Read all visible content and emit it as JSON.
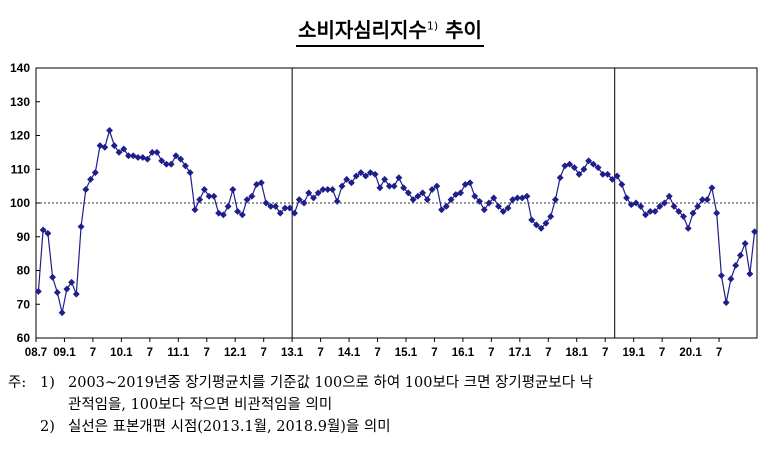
{
  "title": {
    "main": "소비자심리지수",
    "sup": "1)",
    "suffix": "추이"
  },
  "notes": {
    "prefix": "주:",
    "items": [
      {
        "num": "1)",
        "line1": "2003~2019년중 장기평균치를 기준값 100으로 하여 100보다 크면 장기평균보다 낙",
        "line2": "관적임을, 100보다 작으면 비관적임을 의미"
      },
      {
        "num": "2)",
        "line1": "실선은 표본개편 시점(2013.1월, 2018.9월)을 의미"
      }
    ]
  },
  "chart_data": {
    "type": "line",
    "title": "",
    "xlabel": "",
    "ylabel": "",
    "ylim": [
      60,
      140
    ],
    "yticks": [
      60,
      70,
      80,
      90,
      100,
      110,
      120,
      130,
      140
    ],
    "reference_line": 100,
    "vertical_lines": [
      "13.1",
      "18.9"
    ],
    "grid": false,
    "start_month": "2008.7",
    "xtick_labels": [
      {
        "i": 0,
        "label": "08.7"
      },
      {
        "i": 6,
        "label": "09.1"
      },
      {
        "i": 12,
        "label": "7"
      },
      {
        "i": 18,
        "label": "10.1"
      },
      {
        "i": 24,
        "label": "7"
      },
      {
        "i": 30,
        "label": "11.1"
      },
      {
        "i": 36,
        "label": "7"
      },
      {
        "i": 42,
        "label": "12.1"
      },
      {
        "i": 48,
        "label": "7"
      },
      {
        "i": 54,
        "label": "13.1"
      },
      {
        "i": 60,
        "label": "7"
      },
      {
        "i": 66,
        "label": "14.1"
      },
      {
        "i": 72,
        "label": "7"
      },
      {
        "i": 78,
        "label": "15.1"
      },
      {
        "i": 84,
        "label": "7"
      },
      {
        "i": 90,
        "label": "16.1"
      },
      {
        "i": 96,
        "label": "7"
      },
      {
        "i": 102,
        "label": "17.1"
      },
      {
        "i": 108,
        "label": "7"
      },
      {
        "i": 114,
        "label": "18.1"
      },
      {
        "i": 120,
        "label": "7"
      },
      {
        "i": 126,
        "label": "19.1"
      },
      {
        "i": 132,
        "label": "7"
      },
      {
        "i": 138,
        "label": "20.1"
      },
      {
        "i": 144,
        "label": "7"
      }
    ],
    "series": [
      {
        "color": "#1f1f8c",
        "values": [
          73.8,
          92.0,
          91.0,
          78.0,
          73.5,
          67.5,
          74.5,
          76.5,
          73.0,
          93.0,
          104.0,
          107.0,
          109.0,
          117.0,
          116.5,
          121.5,
          117.0,
          115.0,
          116.0,
          114.0,
          114.0,
          113.5,
          113.5,
          113.0,
          115.0,
          115.0,
          112.5,
          111.5,
          111.5,
          114.0,
          113.0,
          111.0,
          109.0,
          98.0,
          101.0,
          104.0,
          102.0,
          102.0,
          97.0,
          96.5,
          99.0,
          104.0,
          97.5,
          96.5,
          101.0,
          102.0,
          105.5,
          106.0,
          100.0,
          99.0,
          99.0,
          97.0,
          98.5,
          98.5,
          97.0,
          101.0,
          100.0,
          103.0,
          101.5,
          103.0,
          104.0,
          104.0,
          104.0,
          100.5,
          105.0,
          107.0,
          106.0,
          108.0,
          109.0,
          108.0,
          109.0,
          108.5,
          104.5,
          107.0,
          105.0,
          105.0,
          107.5,
          104.5,
          103.0,
          101.0,
          102.0,
          103.0,
          101.0,
          104.0,
          105.0,
          98.0,
          99.0,
          101.0,
          102.5,
          103.0,
          105.5,
          106.0,
          102.0,
          100.5,
          98.0,
          100.0,
          101.5,
          99.0,
          97.5,
          98.5,
          101.0,
          101.5,
          101.5,
          102.0,
          95.0,
          93.5,
          92.5,
          94.0,
          96.0,
          101.0,
          107.5,
          111.0,
          111.5,
          110.5,
          108.5,
          110.0,
          112.5,
          111.5,
          110.5,
          108.5,
          108.5,
          107.0,
          108.0,
          105.5,
          101.5,
          99.5,
          100.0,
          99.0,
          96.5,
          97.5,
          97.5,
          99.0,
          100.0,
          102.0,
          99.0,
          97.5,
          96.0,
          92.5,
          97.0,
          99.0,
          101.0,
          101.0,
          104.5,
          97.0,
          78.5,
          70.5,
          77.5,
          81.5,
          84.5,
          88.0,
          79.0,
          91.5
        ]
      }
    ]
  }
}
